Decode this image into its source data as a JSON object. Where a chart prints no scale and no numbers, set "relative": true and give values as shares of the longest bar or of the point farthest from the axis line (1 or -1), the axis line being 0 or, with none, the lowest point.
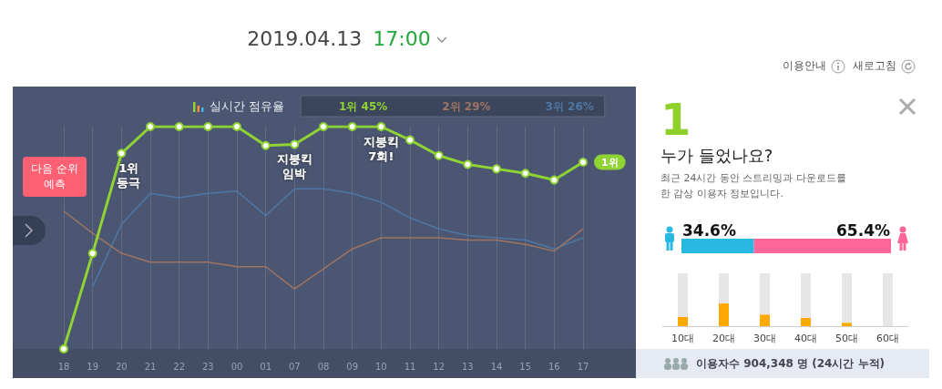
{
  "chart_data": [
    {
      "type": "line",
      "title": "2019.04.13",
      "subtitle": "17:00",
      "relative": true,
      "grid": "x",
      "legend": "top",
      "marker": "circle",
      "categories": [
        "18",
        "19",
        "20",
        "21",
        "22",
        "23",
        "00",
        "01",
        "07",
        "08",
        "09",
        "10",
        "11",
        "12",
        "13",
        "14",
        "15",
        "16",
        "17"
      ],
      "series": [
        {
          "name": "1위 45%",
          "color": "#8fd334",
          "values": [
            0,
            0.43,
            0.88,
            1,
            1,
            1,
            1,
            0.915,
            0.92,
            1,
            1,
            1,
            0.94,
            0.87,
            0.83,
            0.81,
            0.79,
            0.76,
            0.84
          ]
        },
        {
          "name": "2위 29%",
          "color": "#a07462",
          "marker": "none",
          "values": [
            0.62,
            0.52,
            0.43,
            0.39,
            0.39,
            0.39,
            0.37,
            0.37,
            0.27,
            0.36,
            0.45,
            0.5,
            0.5,
            0.5,
            0.49,
            0.49,
            0.47,
            0.44,
            0.54
          ]
        },
        {
          "name": "3위 26%",
          "color": "#4f77a3",
          "marker": "none",
          "values": [
            null,
            0.28,
            0.56,
            0.7,
            0.68,
            0.7,
            0.71,
            0.6,
            0.72,
            0.72,
            0.7,
            0.66,
            0.59,
            0.54,
            0.51,
            0.5,
            0.49,
            0.45,
            0.5
          ]
        }
      ],
      "annotations": [
        "이용안내",
        "새로고침",
        "실시간 점유율",
        "다음 순위 예측",
        {
          "text": "1위 등극",
          "x": "20",
          "y": 0.88
        },
        {
          "text": "지붕킥 임박",
          "x": "07",
          "y": 0.92
        },
        {
          "text": "지붕킥 7회!",
          "x": "10",
          "y": 1
        },
        {
          "text": "1위",
          "x": "17",
          "y": 0.84
        }
      ]
    },
    {
      "type": "other",
      "title": "누가 들었나요?",
      "annotations": [
        "1",
        "최근 24시간 동안 스트리밍과 다운로드를 한 감상 이용자 정보입니다.",
        "이용자수 904,348 명 (24시간 누적)"
      ]
    },
    {
      "type": "bar",
      "orientation": "horizontal",
      "stacked": true,
      "categories": [
        null
      ],
      "series": [
        {
          "color": "#29b8e2",
          "values": [
            34.6
          ],
          "value_labels": [
            "34.6%"
          ]
        },
        {
          "color": "#ff6699",
          "values": [
            65.4
          ],
          "value_labels": [
            "65.4%"
          ]
        }
      ]
    },
    {
      "type": "bar",
      "relative": true,
      "categories": [
        "10대",
        "20대",
        "30대",
        "40대",
        "50대",
        "60대"
      ],
      "stacked": true,
      "series": [
        {
          "color": "#ffa800",
          "values": [
            0.18,
            0.43,
            0.22,
            0.16,
            0.065,
            0
          ]
        },
        {
          "color": "#e6e6e6",
          "values": [
            0.82,
            0.57,
            0.78,
            0.84,
            0.935,
            1
          ]
        }
      ]
    }
  ]
}
